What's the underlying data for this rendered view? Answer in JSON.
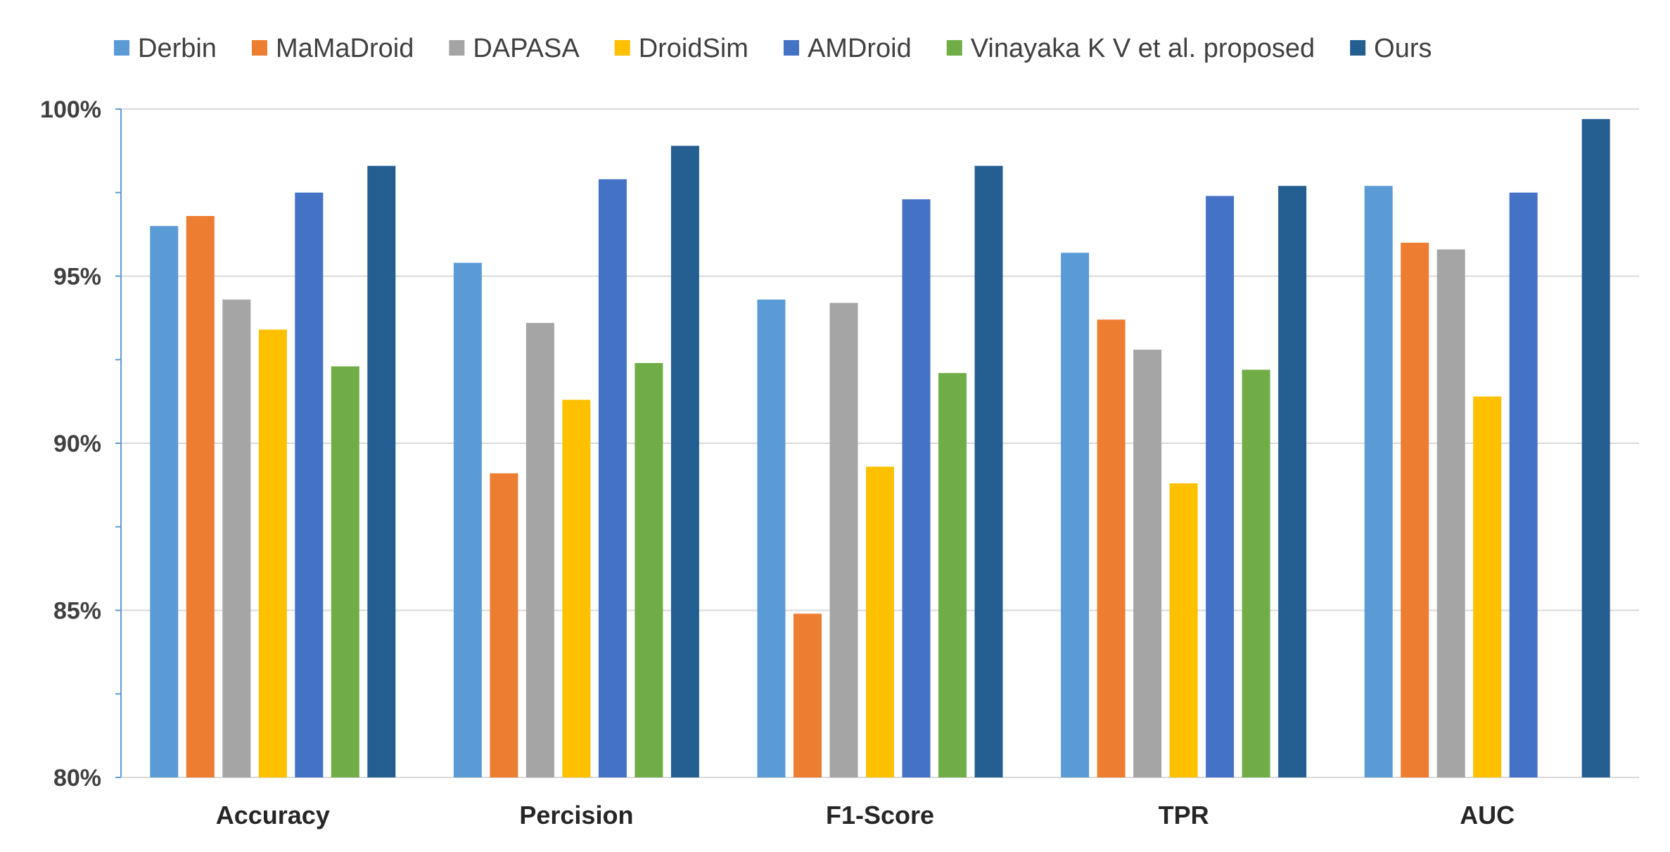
{
  "chart_data": {
    "type": "bar",
    "title": "",
    "xlabel": "",
    "ylabel": "",
    "categories": [
      "Accuracy",
      "Percision",
      "F1-Score",
      "TPR",
      "AUC"
    ],
    "ylim": [
      80,
      100
    ],
    "yticks": [
      80,
      85,
      90,
      95,
      100
    ],
    "ytick_labels": [
      "80%",
      "85%",
      "90%",
      "95%",
      "100%"
    ],
    "grid": true,
    "legend_position": "top",
    "series": [
      {
        "name": "Derbin",
        "color": "#5B9BD5",
        "values": [
          96.5,
          95.4,
          94.3,
          95.7,
          97.7
        ]
      },
      {
        "name": "MaMaDroid",
        "color": "#ED7D31",
        "values": [
          96.8,
          89.1,
          84.9,
          93.7,
          96.0
        ]
      },
      {
        "name": "DAPASA",
        "color": "#A5A5A5",
        "values": [
          94.3,
          93.6,
          94.2,
          92.8,
          95.8
        ]
      },
      {
        "name": "DroidSim",
        "color": "#FFC000",
        "values": [
          93.4,
          91.3,
          89.3,
          88.8,
          91.4
        ]
      },
      {
        "name": "AMDroid",
        "color": "#4472C4",
        "values": [
          97.5,
          97.9,
          97.3,
          97.4,
          97.5
        ]
      },
      {
        "name": "Vinayaka K V et al. proposed",
        "color": "#70AD47",
        "values": [
          92.3,
          92.4,
          92.1,
          92.2,
          null
        ]
      },
      {
        "name": "Ours",
        "color": "#255E91",
        "values": [
          98.3,
          98.9,
          98.3,
          97.7,
          99.7
        ]
      }
    ]
  }
}
